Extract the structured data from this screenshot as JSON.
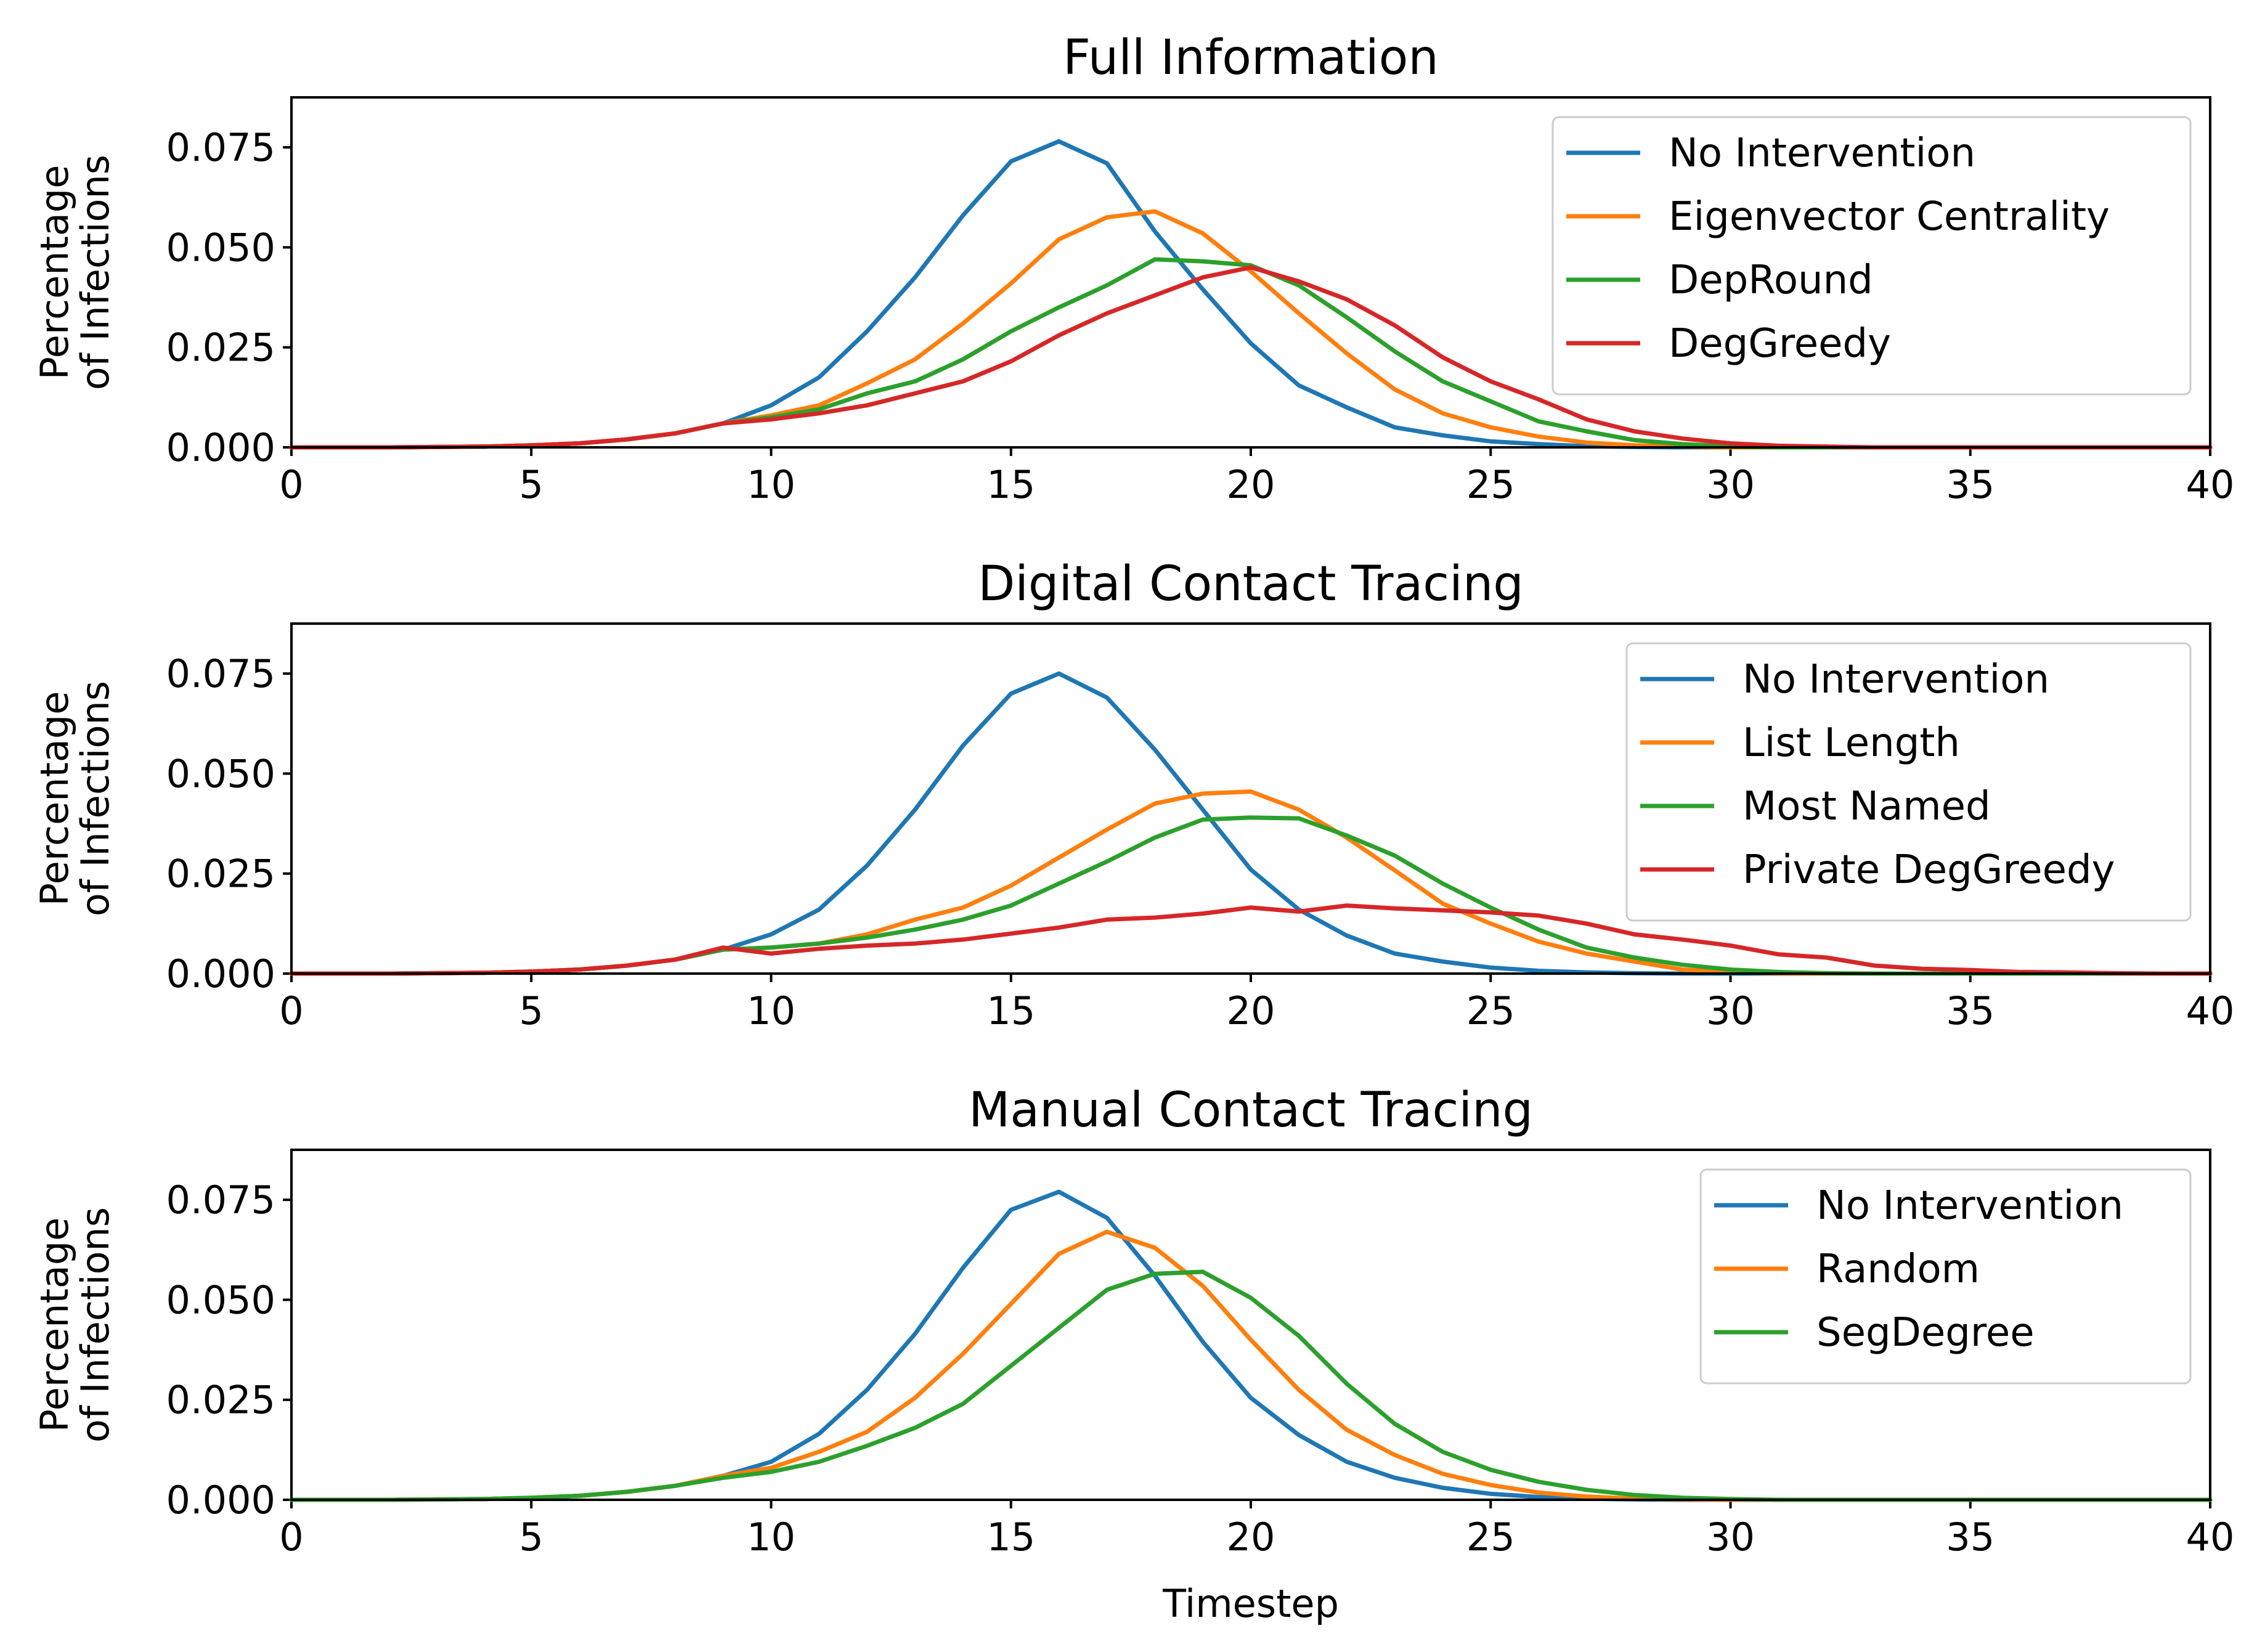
{
  "colors": {
    "blue": "#1f77b4",
    "orange": "#ff7f0e",
    "green": "#2ca02c",
    "red": "#d62728"
  },
  "chart_data": [
    {
      "type": "line",
      "title": "Full Information",
      "ylabel": [
        "Percentage",
        "of Infections"
      ],
      "xlabel": "",
      "xlim": [
        0,
        40
      ],
      "ylim": [
        0,
        0.0875
      ],
      "xticks": [
        "0",
        "5",
        "10",
        "15",
        "20",
        "25",
        "30",
        "35",
        "40"
      ],
      "yticks": [
        "0.000",
        "0.025",
        "0.050",
        "0.075"
      ],
      "legend_position": "top-right",
      "x": [
        0,
        1,
        2,
        3,
        4,
        5,
        6,
        7,
        8,
        9,
        10,
        11,
        12,
        13,
        14,
        15,
        16,
        17,
        18,
        19,
        20,
        21,
        22,
        23,
        24,
        25,
        26,
        27,
        28,
        29,
        30,
        31,
        32,
        33,
        34,
        35,
        36,
        37,
        38,
        39,
        40
      ],
      "series": [
        {
          "name": "No Intervention",
          "color": "#1f77b4",
          "values": [
            0,
            0,
            0,
            0.0001,
            0.0002,
            0.0005,
            0.001,
            0.002,
            0.0035,
            0.006,
            0.0105,
            0.0175,
            0.029,
            0.0425,
            0.058,
            0.0715,
            0.0765,
            0.071,
            0.054,
            0.0395,
            0.026,
            0.0155,
            0.01,
            0.005,
            0.003,
            0.0015,
            0.0008,
            0.0003,
            0.0001,
            0,
            0,
            0,
            0,
            0,
            0,
            0,
            0,
            0,
            0,
            0,
            0
          ]
        },
        {
          "name": "Eigenvector Centrality",
          "color": "#ff7f0e",
          "values": [
            0,
            0,
            0,
            0.0001,
            0.0002,
            0.0005,
            0.001,
            0.002,
            0.0035,
            0.006,
            0.008,
            0.0105,
            0.016,
            0.022,
            0.031,
            0.041,
            0.052,
            0.0575,
            0.059,
            0.0535,
            0.044,
            0.0335,
            0.0235,
            0.0145,
            0.0085,
            0.005,
            0.0027,
            0.0012,
            0.0005,
            0.0002,
            0,
            0,
            0,
            0,
            0,
            0,
            0,
            0,
            0,
            0,
            0
          ]
        },
        {
          "name": "DepRound",
          "color": "#2ca02c",
          "values": [
            0,
            0,
            0,
            0.0001,
            0.0002,
            0.0005,
            0.001,
            0.002,
            0.0035,
            0.006,
            0.0075,
            0.0095,
            0.0135,
            0.0165,
            0.022,
            0.029,
            0.035,
            0.0405,
            0.047,
            0.0465,
            0.0455,
            0.0405,
            0.0325,
            0.024,
            0.0165,
            0.0115,
            0.0065,
            0.004,
            0.0018,
            0.0008,
            0.0002,
            0,
            0,
            0,
            0,
            0,
            0,
            0,
            0,
            0,
            0
          ]
        },
        {
          "name": "DegGreedy",
          "color": "#d62728",
          "values": [
            0,
            0,
            0,
            0.0001,
            0.0002,
            0.0005,
            0.001,
            0.002,
            0.0035,
            0.006,
            0.007,
            0.0085,
            0.0105,
            0.0135,
            0.0165,
            0.0215,
            0.028,
            0.0335,
            0.038,
            0.0425,
            0.045,
            0.0415,
            0.037,
            0.0305,
            0.0225,
            0.0165,
            0.012,
            0.007,
            0.004,
            0.0022,
            0.001,
            0.0004,
            0.0002,
            0,
            0,
            0,
            0,
            0,
            0,
            0,
            0
          ]
        }
      ]
    },
    {
      "type": "line",
      "title": "Digital Contact Tracing",
      "ylabel": [
        "Percentage",
        "of Infections"
      ],
      "xlabel": "",
      "xlim": [
        0,
        40
      ],
      "ylim": [
        0,
        0.0875
      ],
      "xticks": [
        "0",
        "5",
        "10",
        "15",
        "20",
        "25",
        "30",
        "35",
        "40"
      ],
      "yticks": [
        "0.000",
        "0.025",
        "0.050",
        "0.075"
      ],
      "legend_position": "top-right",
      "x": [
        0,
        1,
        2,
        3,
        4,
        5,
        6,
        7,
        8,
        9,
        10,
        11,
        12,
        13,
        14,
        15,
        16,
        17,
        18,
        19,
        20,
        21,
        22,
        23,
        24,
        25,
        26,
        27,
        28,
        29,
        30,
        31,
        32,
        33,
        34,
        35,
        36,
        37,
        38,
        39,
        40
      ],
      "series": [
        {
          "name": "No Intervention",
          "color": "#1f77b4",
          "values": [
            0,
            0,
            0,
            0.0001,
            0.0002,
            0.0005,
            0.001,
            0.002,
            0.0035,
            0.006,
            0.0098,
            0.016,
            0.027,
            0.041,
            0.057,
            0.07,
            0.075,
            0.069,
            0.056,
            0.041,
            0.026,
            0.016,
            0.0095,
            0.005,
            0.003,
            0.0015,
            0.0007,
            0.0003,
            0.0001,
            0,
            0,
            0,
            0,
            0,
            0,
            0,
            0,
            0,
            0,
            0,
            0
          ]
        },
        {
          "name": "List Length",
          "color": "#ff7f0e",
          "values": [
            0,
            0,
            0,
            0.0001,
            0.0002,
            0.0005,
            0.001,
            0.002,
            0.0035,
            0.006,
            0.0065,
            0.0075,
            0.0098,
            0.0135,
            0.0165,
            0.022,
            0.029,
            0.036,
            0.0425,
            0.045,
            0.0455,
            0.041,
            0.034,
            0.0258,
            0.0175,
            0.0125,
            0.008,
            0.005,
            0.003,
            0.001,
            0.0003,
            0.0001,
            0,
            0,
            0,
            0,
            0,
            0,
            0,
            0,
            0
          ]
        },
        {
          "name": "Most Named",
          "color": "#2ca02c",
          "values": [
            0,
            0,
            0,
            0.0001,
            0.0002,
            0.0005,
            0.001,
            0.002,
            0.0035,
            0.006,
            0.0065,
            0.0075,
            0.009,
            0.011,
            0.0135,
            0.017,
            0.0225,
            0.028,
            0.034,
            0.0385,
            0.039,
            0.0388,
            0.0345,
            0.0295,
            0.0225,
            0.0165,
            0.011,
            0.0065,
            0.004,
            0.0022,
            0.001,
            0.0004,
            0.0001,
            0,
            0,
            0,
            0,
            0,
            0,
            0,
            0
          ]
        },
        {
          "name": "Private DegGreedy",
          "color": "#d62728",
          "values": [
            0,
            0,
            0,
            0.0001,
            0.0002,
            0.0005,
            0.001,
            0.002,
            0.0035,
            0.0065,
            0.005,
            0.0062,
            0.007,
            0.0075,
            0.0085,
            0.01,
            0.0115,
            0.0135,
            0.014,
            0.015,
            0.0165,
            0.0155,
            0.017,
            0.0163,
            0.0158,
            0.0153,
            0.0145,
            0.0125,
            0.0098,
            0.0085,
            0.007,
            0.0048,
            0.004,
            0.002,
            0.0012,
            0.0009,
            0.0004,
            0.0003,
            0.0001,
            0,
            0
          ]
        }
      ]
    },
    {
      "type": "line",
      "title": "Manual Contact Tracing",
      "ylabel": [
        "Percentage",
        "of Infections"
      ],
      "xlabel": "Timestep",
      "xlim": [
        0,
        40
      ],
      "ylim": [
        0,
        0.0875
      ],
      "xticks": [
        "0",
        "5",
        "10",
        "15",
        "20",
        "25",
        "30",
        "35",
        "40"
      ],
      "yticks": [
        "0.000",
        "0.025",
        "0.050",
        "0.075"
      ],
      "legend_position": "top-right",
      "x": [
        0,
        1,
        2,
        3,
        4,
        5,
        6,
        7,
        8,
        9,
        10,
        11,
        12,
        13,
        14,
        15,
        16,
        17,
        18,
        19,
        20,
        21,
        22,
        23,
        24,
        25,
        26,
        27,
        28,
        29,
        30,
        31,
        32,
        33,
        34,
        35,
        36,
        37,
        38,
        39,
        40
      ],
      "series": [
        {
          "name": "No Intervention",
          "color": "#1f77b4",
          "values": [
            0,
            0,
            0,
            0.0001,
            0.0002,
            0.0005,
            0.001,
            0.002,
            0.0035,
            0.006,
            0.0095,
            0.0165,
            0.0275,
            0.0415,
            0.058,
            0.0725,
            0.077,
            0.0705,
            0.056,
            0.0395,
            0.0255,
            0.0162,
            0.0095,
            0.0055,
            0.003,
            0.0015,
            0.0007,
            0.0003,
            0.0001,
            0,
            0,
            0,
            0,
            0,
            0,
            0,
            0,
            0,
            0,
            0,
            0
          ]
        },
        {
          "name": "Random",
          "color": "#ff7f0e",
          "values": [
            0,
            0,
            0,
            0.0001,
            0.0002,
            0.0005,
            0.001,
            0.002,
            0.0035,
            0.006,
            0.008,
            0.012,
            0.017,
            0.0255,
            0.0365,
            0.049,
            0.0615,
            0.067,
            0.063,
            0.0535,
            0.04,
            0.0275,
            0.0175,
            0.0112,
            0.0065,
            0.0037,
            0.0018,
            0.0008,
            0.0003,
            0.0001,
            0,
            0,
            0,
            0,
            0,
            0,
            0,
            0,
            0,
            0,
            0
          ]
        },
        {
          "name": "SegDegree",
          "color": "#2ca02c",
          "values": [
            0,
            0,
            0,
            0.0001,
            0.0002,
            0.0005,
            0.001,
            0.002,
            0.0035,
            0.0055,
            0.007,
            0.0095,
            0.0135,
            0.018,
            0.024,
            0.0335,
            0.043,
            0.0525,
            0.0565,
            0.057,
            0.0505,
            0.041,
            0.029,
            0.019,
            0.012,
            0.0075,
            0.0045,
            0.0025,
            0.0012,
            0.0005,
            0.0002,
            0,
            0,
            0,
            0,
            0,
            0,
            0,
            0,
            0,
            0
          ]
        }
      ]
    }
  ]
}
